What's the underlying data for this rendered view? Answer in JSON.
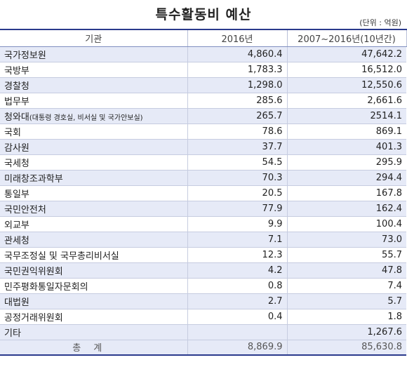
{
  "title": "특수활동비 예산",
  "unit": "(단위 : 억원)",
  "table": {
    "headers": [
      "기관",
      "2016년",
      "2007~2016년(10년간)"
    ],
    "rows": [
      {
        "org": "국가정보원",
        "note": "",
        "y2016": "4,860.4",
        "total10": "47,642.2"
      },
      {
        "org": "국방부",
        "note": "",
        "y2016": "1,783.3",
        "total10": "16,512.0"
      },
      {
        "org": "경찰청",
        "note": "",
        "y2016": "1,298.0",
        "total10": "12,550.6"
      },
      {
        "org": "법무부",
        "note": "",
        "y2016": "285.6",
        "total10": "2,661.6"
      },
      {
        "org": "청와대",
        "note": "(대통령 경호실, 비서실 및 국가안보실)",
        "y2016": "265.7",
        "total10": "2514.1"
      },
      {
        "org": "국회",
        "note": "",
        "y2016": "78.6",
        "total10": "869.1"
      },
      {
        "org": "감사원",
        "note": "",
        "y2016": "37.7",
        "total10": "401.3"
      },
      {
        "org": "국세청",
        "note": "",
        "y2016": "54.5",
        "total10": "295.9"
      },
      {
        "org": "미래창조과학부",
        "note": "",
        "y2016": "70.3",
        "total10": "294.4"
      },
      {
        "org": "통일부",
        "note": "",
        "y2016": "20.5",
        "total10": "167.8"
      },
      {
        "org": "국민안전처",
        "note": "",
        "y2016": "77.9",
        "total10": "162.4"
      },
      {
        "org": "외교부",
        "note": "",
        "y2016": "9.9",
        "total10": "100.4"
      },
      {
        "org": "관세청",
        "note": "",
        "y2016": "7.1",
        "total10": "73.0"
      },
      {
        "org": "국무조정실 및 국무총리비서실",
        "note": "",
        "y2016": "12.3",
        "total10": "55.7"
      },
      {
        "org": "국민권익위원회",
        "note": "",
        "y2016": "4.2",
        "total10": "47.8"
      },
      {
        "org": "민주평화통일자문회의",
        "note": "",
        "y2016": "0.8",
        "total10": "7.4"
      },
      {
        "org": "대법원",
        "note": "",
        "y2016": "2.7",
        "total10": "5.7"
      },
      {
        "org": "공정거래위원회",
        "note": "",
        "y2016": "0.4",
        "total10": "1.8"
      },
      {
        "org": "기타",
        "note": "",
        "y2016": "",
        "total10": "1,267.6"
      }
    ],
    "total": {
      "label": "총계",
      "y2016": "8,869.9",
      "total10": "85,630.8"
    }
  },
  "colors": {
    "header_rule": "#2a3a8c",
    "stripe": "#e6eaf7"
  }
}
